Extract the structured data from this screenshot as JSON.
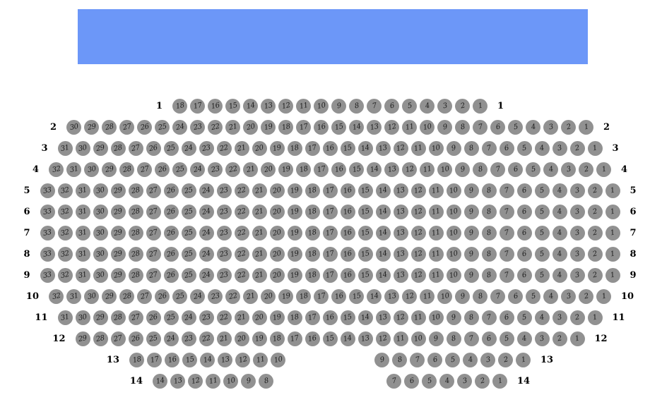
{
  "colors": {
    "stage_blue": "#6c97f8",
    "seat_gray": "#919191",
    "seat_number_text": "#1c1c1c",
    "row_label_text": "#000000"
  },
  "stage": {
    "label": ""
  },
  "seat_map": {
    "rows": [
      {
        "label": "1",
        "groups": [
          [
            18,
            17,
            16,
            15,
            14,
            13,
            12,
            11,
            10,
            9,
            8,
            7,
            6,
            5,
            4,
            3,
            2,
            1
          ]
        ]
      },
      {
        "label": "2",
        "groups": [
          [
            30,
            29,
            28,
            27,
            26,
            25,
            24,
            23,
            22,
            21,
            20,
            19,
            18,
            17,
            16,
            15,
            14,
            13,
            12,
            11,
            10,
            9,
            8,
            7,
            6,
            5,
            4,
            3,
            2,
            1
          ]
        ]
      },
      {
        "label": "3",
        "groups": [
          [
            31,
            30,
            29,
            28,
            27,
            26,
            25,
            24,
            23,
            22,
            21,
            20,
            19,
            18,
            17,
            16,
            15,
            14,
            13,
            12,
            11,
            10,
            9,
            8,
            7,
            6,
            5,
            4,
            3,
            2,
            1
          ]
        ]
      },
      {
        "label": "4",
        "groups": [
          [
            32,
            31,
            30,
            29,
            28,
            27,
            26,
            25,
            24,
            23,
            22,
            21,
            20,
            19,
            18,
            17,
            16,
            15,
            14,
            13,
            12,
            11,
            10,
            9,
            8,
            7,
            6,
            5,
            4,
            3,
            2,
            1
          ]
        ]
      },
      {
        "label": "5",
        "groups": [
          [
            33,
            32,
            31,
            30,
            29,
            28,
            27,
            26,
            25,
            24,
            23,
            22,
            21,
            20,
            19,
            18,
            17,
            16,
            15,
            14,
            13,
            12,
            11,
            10,
            9,
            8,
            7,
            6,
            5,
            4,
            3,
            2,
            1
          ]
        ]
      },
      {
        "label": "6",
        "groups": [
          [
            33,
            32,
            31,
            30,
            29,
            28,
            27,
            26,
            25,
            24,
            23,
            22,
            21,
            20,
            19,
            18,
            17,
            16,
            15,
            14,
            13,
            12,
            11,
            10,
            9,
            8,
            7,
            6,
            5,
            4,
            3,
            2,
            1
          ]
        ]
      },
      {
        "label": "7",
        "groups": [
          [
            33,
            32,
            31,
            30,
            29,
            28,
            27,
            26,
            25,
            24,
            23,
            22,
            21,
            20,
            19,
            18,
            17,
            16,
            15,
            14,
            13,
            12,
            11,
            10,
            9,
            8,
            7,
            6,
            5,
            4,
            3,
            2,
            1
          ]
        ]
      },
      {
        "label": "8",
        "groups": [
          [
            33,
            32,
            31,
            30,
            29,
            28,
            27,
            26,
            25,
            24,
            23,
            22,
            21,
            20,
            19,
            18,
            17,
            16,
            15,
            14,
            13,
            12,
            11,
            10,
            9,
            8,
            7,
            6,
            5,
            4,
            3,
            2,
            1
          ]
        ]
      },
      {
        "label": "9",
        "groups": [
          [
            33,
            32,
            31,
            30,
            29,
            28,
            27,
            26,
            25,
            24,
            23,
            22,
            21,
            20,
            19,
            18,
            17,
            16,
            15,
            14,
            13,
            12,
            11,
            10,
            9,
            8,
            7,
            6,
            5,
            4,
            3,
            2,
            1
          ]
        ]
      },
      {
        "label": "10",
        "groups": [
          [
            32,
            31,
            30,
            29,
            28,
            27,
            26,
            25,
            24,
            23,
            22,
            21,
            20,
            19,
            18,
            17,
            16,
            15,
            14,
            13,
            12,
            11,
            10,
            9,
            8,
            7,
            6,
            5,
            4,
            3,
            2,
            1
          ]
        ]
      },
      {
        "label": "11",
        "groups": [
          [
            31,
            30,
            29,
            28,
            27,
            26,
            25,
            24,
            23,
            22,
            21,
            20,
            19,
            18,
            17,
            16,
            15,
            14,
            13,
            12,
            11,
            10,
            9,
            8,
            7,
            6,
            5,
            4,
            3,
            2,
            1
          ]
        ]
      },
      {
        "label": "12",
        "groups": [
          [
            29,
            28,
            27,
            26,
            25,
            24,
            23,
            22,
            21,
            20,
            19,
            18,
            17,
            16,
            15,
            14,
            13,
            12,
            11,
            10,
            9,
            8,
            7,
            6,
            5,
            4,
            3,
            2,
            1
          ]
        ]
      },
      {
        "label": "13",
        "groups": [
          [
            18,
            17,
            16,
            15,
            14,
            13,
            12,
            11,
            10
          ],
          [
            9,
            8,
            7,
            6,
            5,
            4,
            3,
            2,
            1
          ]
        ]
      },
      {
        "label": "14",
        "groups": [
          [
            14,
            13,
            12,
            11,
            10,
            9,
            8
          ],
          [
            7,
            6,
            5,
            4,
            3,
            2,
            1
          ]
        ]
      }
    ]
  }
}
